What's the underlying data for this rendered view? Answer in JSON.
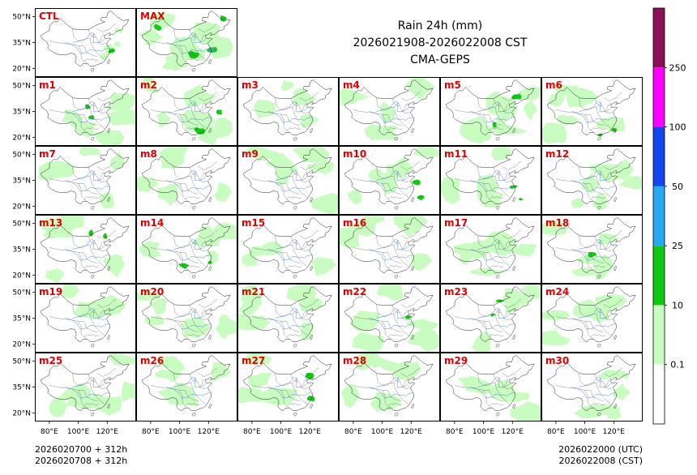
{
  "chart_data": {
    "type": "heatmap",
    "title_lines": [
      "Rain 24h (mm)",
      "2026021908-2026022008 CST",
      "CMA-GEPS"
    ],
    "panels": [
      "CTL",
      "MAX",
      "m1",
      "m2",
      "m3",
      "m4",
      "m5",
      "m6",
      "m7",
      "m8",
      "m9",
      "m10",
      "m11",
      "m12",
      "m13",
      "m14",
      "m15",
      "m16",
      "m17",
      "m18",
      "m19",
      "m20",
      "m21",
      "m22",
      "m23",
      "m24",
      "m25",
      "m26",
      "m27",
      "m28",
      "m29",
      "m30"
    ],
    "x_ticks": [
      "80°E",
      "100°E",
      "120°E"
    ],
    "y_ticks": [
      "50°N",
      "35°N",
      "20°N"
    ],
    "lon_range": [
      70,
      140
    ],
    "lat_range": [
      15,
      55
    ],
    "colorbar": {
      "levels": [
        "0.1",
        "10",
        "25",
        "50",
        "100",
        "250"
      ],
      "colors": [
        "#ffffff",
        "#c8fcc0",
        "#10c810",
        "#28aaf0",
        "#1446f0",
        "#ff00ff",
        "#8c1058"
      ]
    },
    "footer_left": [
      "2026020700 + 312h",
      "2026020708 + 312h"
    ],
    "footer_right": [
      "2026022000 (UTC)",
      "2026022008 (CST)"
    ]
  }
}
